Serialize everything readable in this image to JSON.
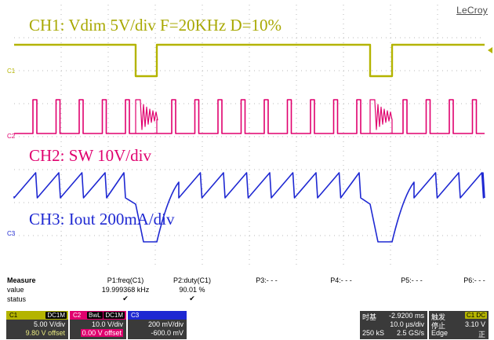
{
  "brand": "LeCroy",
  "annotations": {
    "ch1": "CH1: Vdim 5V/div F=20KHz D=10%",
    "ch2": "CH2: SW 10V/div",
    "ch3": "CH3: Iout 200mA/div"
  },
  "channel_markers": {
    "c1": "C1",
    "c2": "C2",
    "c3": "C3"
  },
  "colors": {
    "ch1": "#b4b400",
    "ch2": "#e0006e",
    "ch3": "#1e28d2"
  },
  "measure": {
    "title": "Measure",
    "row_labels": [
      "value",
      "status"
    ],
    "params": [
      {
        "name": "P1:freq(C1)",
        "value": "19.999368 kHz",
        "status": "✔"
      },
      {
        "name": "P2:duty(C1)",
        "value": "90.01 %",
        "status": "✔"
      },
      {
        "name": "P3:- - -",
        "value": "",
        "status": ""
      },
      {
        "name": "P4:- - -",
        "value": "",
        "status": ""
      },
      {
        "name": "P5:- - -",
        "value": "",
        "status": ""
      },
      {
        "name": "P6:- - -",
        "value": "",
        "status": ""
      }
    ]
  },
  "channels": [
    {
      "id": "C1",
      "coupling": "DC1M",
      "scale": "5.00 V/div",
      "offset": "9.80 V offset"
    },
    {
      "id": "C2",
      "bwl": "BwL",
      "coupling": "DC1M",
      "scale": "10.0 V/div",
      "offset": "0.00 V offset"
    },
    {
      "id": "C3",
      "scale": "200 mV/div",
      "offset": "-600.0 mV"
    }
  ],
  "timebase": {
    "label": "时基",
    "delay": "-2.9200 ms",
    "per_div": "10.0 µs/div",
    "samples": "250 kS",
    "rate": "2.5 GS/s"
  },
  "trigger": {
    "label": "触发",
    "tag": "C1 DC",
    "mode": "停止",
    "level": "3.10 V",
    "type": "Edge",
    "slope": "正"
  }
}
